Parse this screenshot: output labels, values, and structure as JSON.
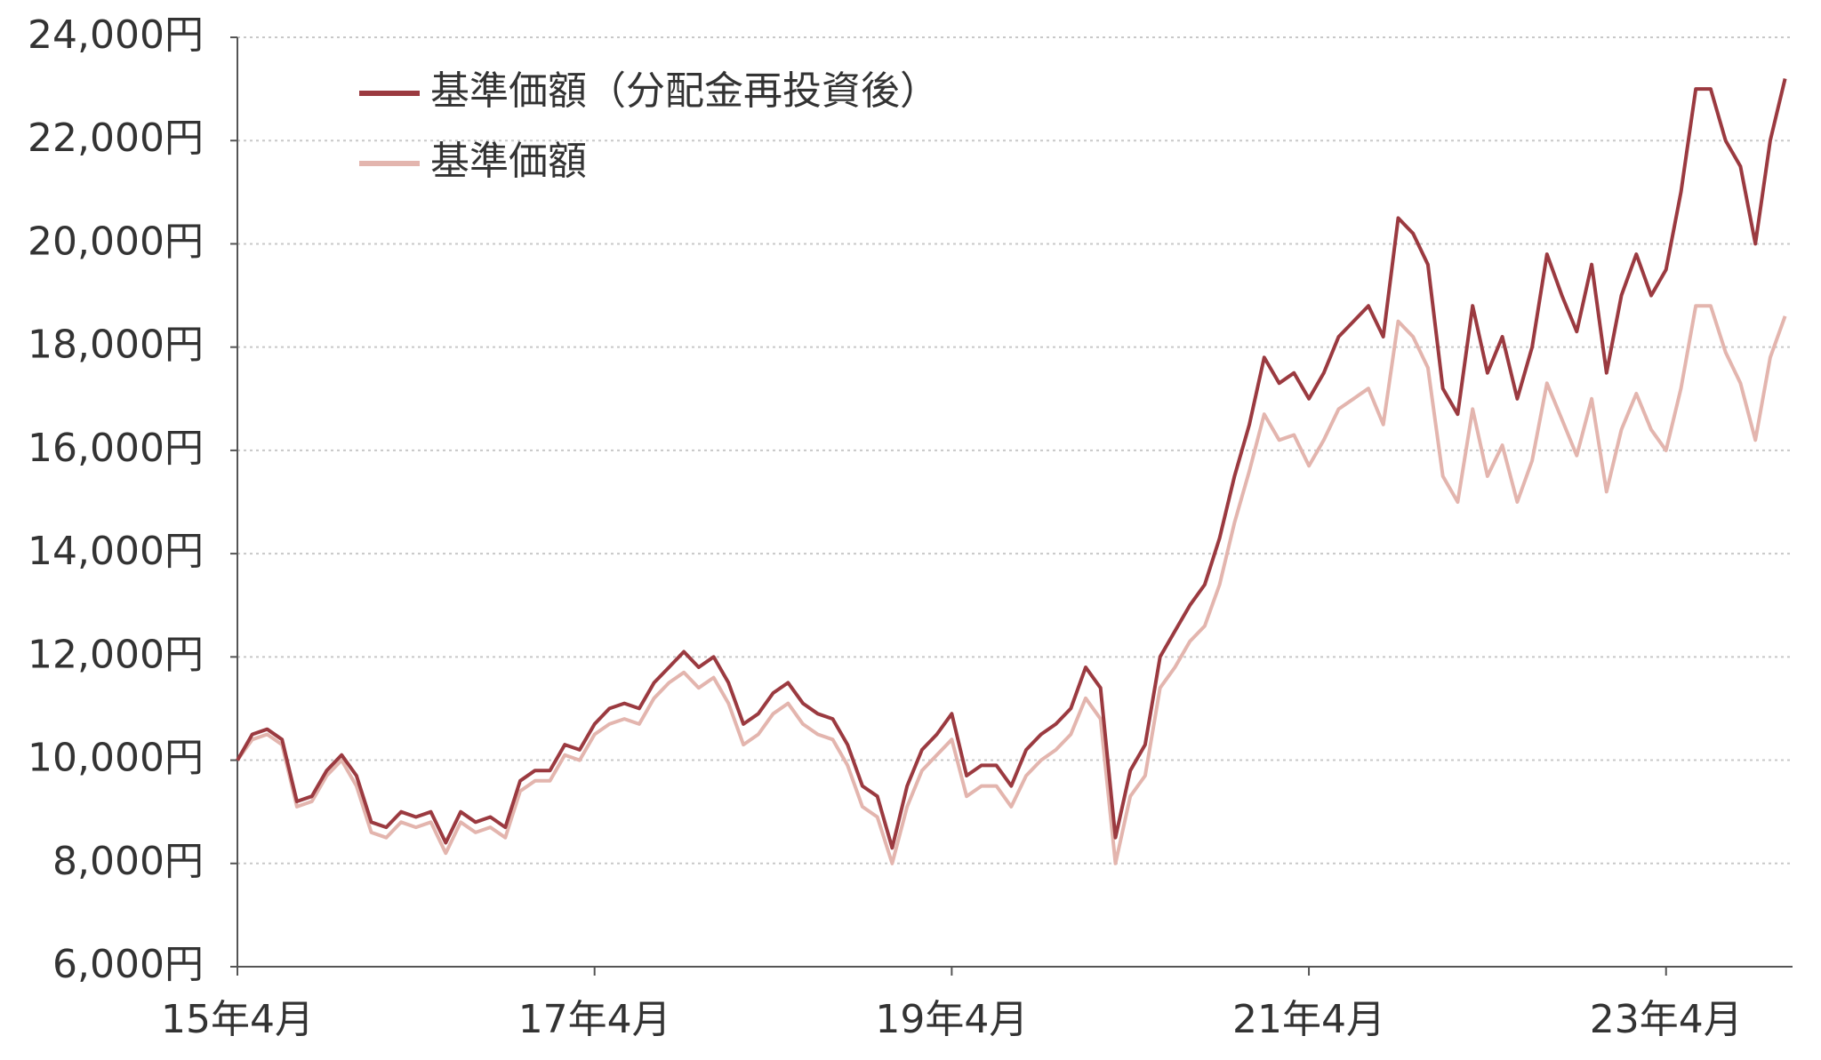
{
  "chart_data": {
    "type": "line",
    "categories": [
      "15年4月",
      null,
      null,
      null,
      null,
      null,
      null,
      null,
      null,
      null,
      null,
      null,
      null,
      null,
      null,
      null,
      null,
      null,
      null,
      null,
      null,
      null,
      null,
      null,
      "17年4月",
      null,
      null,
      null,
      null,
      null,
      null,
      null,
      null,
      null,
      null,
      null,
      null,
      null,
      null,
      null,
      null,
      null,
      null,
      null,
      null,
      null,
      null,
      null,
      "19年4月",
      null,
      null,
      null,
      null,
      null,
      null,
      null,
      null,
      null,
      null,
      null,
      null,
      null,
      null,
      null,
      null,
      null,
      null,
      null,
      null,
      null,
      null,
      null,
      "21年4月",
      null,
      null,
      null,
      null,
      null,
      null,
      null,
      null,
      null,
      null,
      null,
      null,
      null,
      null,
      null,
      null,
      null,
      null,
      null,
      null,
      null,
      null,
      null,
      "23年4月",
      null,
      null,
      null,
      null,
      null,
      null,
      null,
      null
    ],
    "series": [
      {
        "name": "基準価額（分配金再投資後）",
        "color": "#9b3a40",
        "values": [
          10000,
          10500,
          10600,
          10400,
          9200,
          9300,
          9800,
          10100,
          9700,
          8800,
          8700,
          9000,
          8900,
          9000,
          8400,
          9000,
          8800,
          8900,
          8700,
          9600,
          9800,
          9800,
          10300,
          10200,
          10700,
          11000,
          11100,
          11000,
          11500,
          11800,
          12100,
          11800,
          12000,
          11500,
          10700,
          10900,
          11300,
          11500,
          11100,
          10900,
          10800,
          10300,
          9500,
          9300,
          8300,
          9500,
          10200,
          10500,
          10900,
          9700,
          9900,
          9900,
          9500,
          10200,
          10500,
          10700,
          11000,
          11800,
          11400,
          8500,
          9800,
          10300,
          12000,
          12500,
          13000,
          13400,
          14300,
          15500,
          16500,
          17800,
          17300,
          17500,
          17000,
          17500,
          18200,
          18500,
          18800,
          18200,
          20500,
          20200,
          19600,
          17200,
          16700,
          18800,
          17500,
          18200,
          17000,
          18000,
          19800,
          19000,
          18300,
          19600,
          17500,
          19000,
          19800,
          19000,
          19500,
          21000,
          23000,
          23000,
          22000,
          21500,
          20000,
          22000,
          23200
        ]
      },
      {
        "name": "基準価額",
        "color": "#e3b5ae",
        "values": [
          10000,
          10400,
          10500,
          10300,
          9100,
          9200,
          9700,
          10000,
          9500,
          8600,
          8500,
          8800,
          8700,
          8800,
          8200,
          8800,
          8600,
          8700,
          8500,
          9400,
          9600,
          9600,
          10100,
          10000,
          10500,
          10700,
          10800,
          10700,
          11200,
          11500,
          11700,
          11400,
          11600,
          11100,
          10300,
          10500,
          10900,
          11100,
          10700,
          10500,
          10400,
          9900,
          9100,
          8900,
          8000,
          9100,
          9800,
          10100,
          10400,
          9300,
          9500,
          9500,
          9100,
          9700,
          10000,
          10200,
          10500,
          11200,
          10800,
          8000,
          9300,
          9700,
          11400,
          11800,
          12300,
          12600,
          13400,
          14600,
          15600,
          16700,
          16200,
          16300,
          15700,
          16200,
          16800,
          17000,
          17200,
          16500,
          18500,
          18200,
          17600,
          15500,
          15000,
          16800,
          15500,
          16100,
          15000,
          15800,
          17300,
          16600,
          15900,
          17000,
          15200,
          16400,
          17100,
          16400,
          16000,
          17200,
          18800,
          18800,
          17900,
          17300,
          16200,
          17800,
          18600
        ]
      }
    ],
    "ylim": [
      6000,
      24000
    ],
    "yticks": [
      {
        "value": 6000,
        "label": "6,000円"
      },
      {
        "value": 8000,
        "label": "8,000円"
      },
      {
        "value": 10000,
        "label": "10,000円"
      },
      {
        "value": 12000,
        "label": "12,000円"
      },
      {
        "value": 14000,
        "label": "14,000円"
      },
      {
        "value": 16000,
        "label": "16,000円"
      },
      {
        "value": 18000,
        "label": "18,000円"
      },
      {
        "value": 20000,
        "label": "20,000円"
      },
      {
        "value": 22000,
        "label": "22,000円"
      },
      {
        "value": 24000,
        "label": "24,000円"
      }
    ],
    "grid": true,
    "legend": "top-left"
  }
}
